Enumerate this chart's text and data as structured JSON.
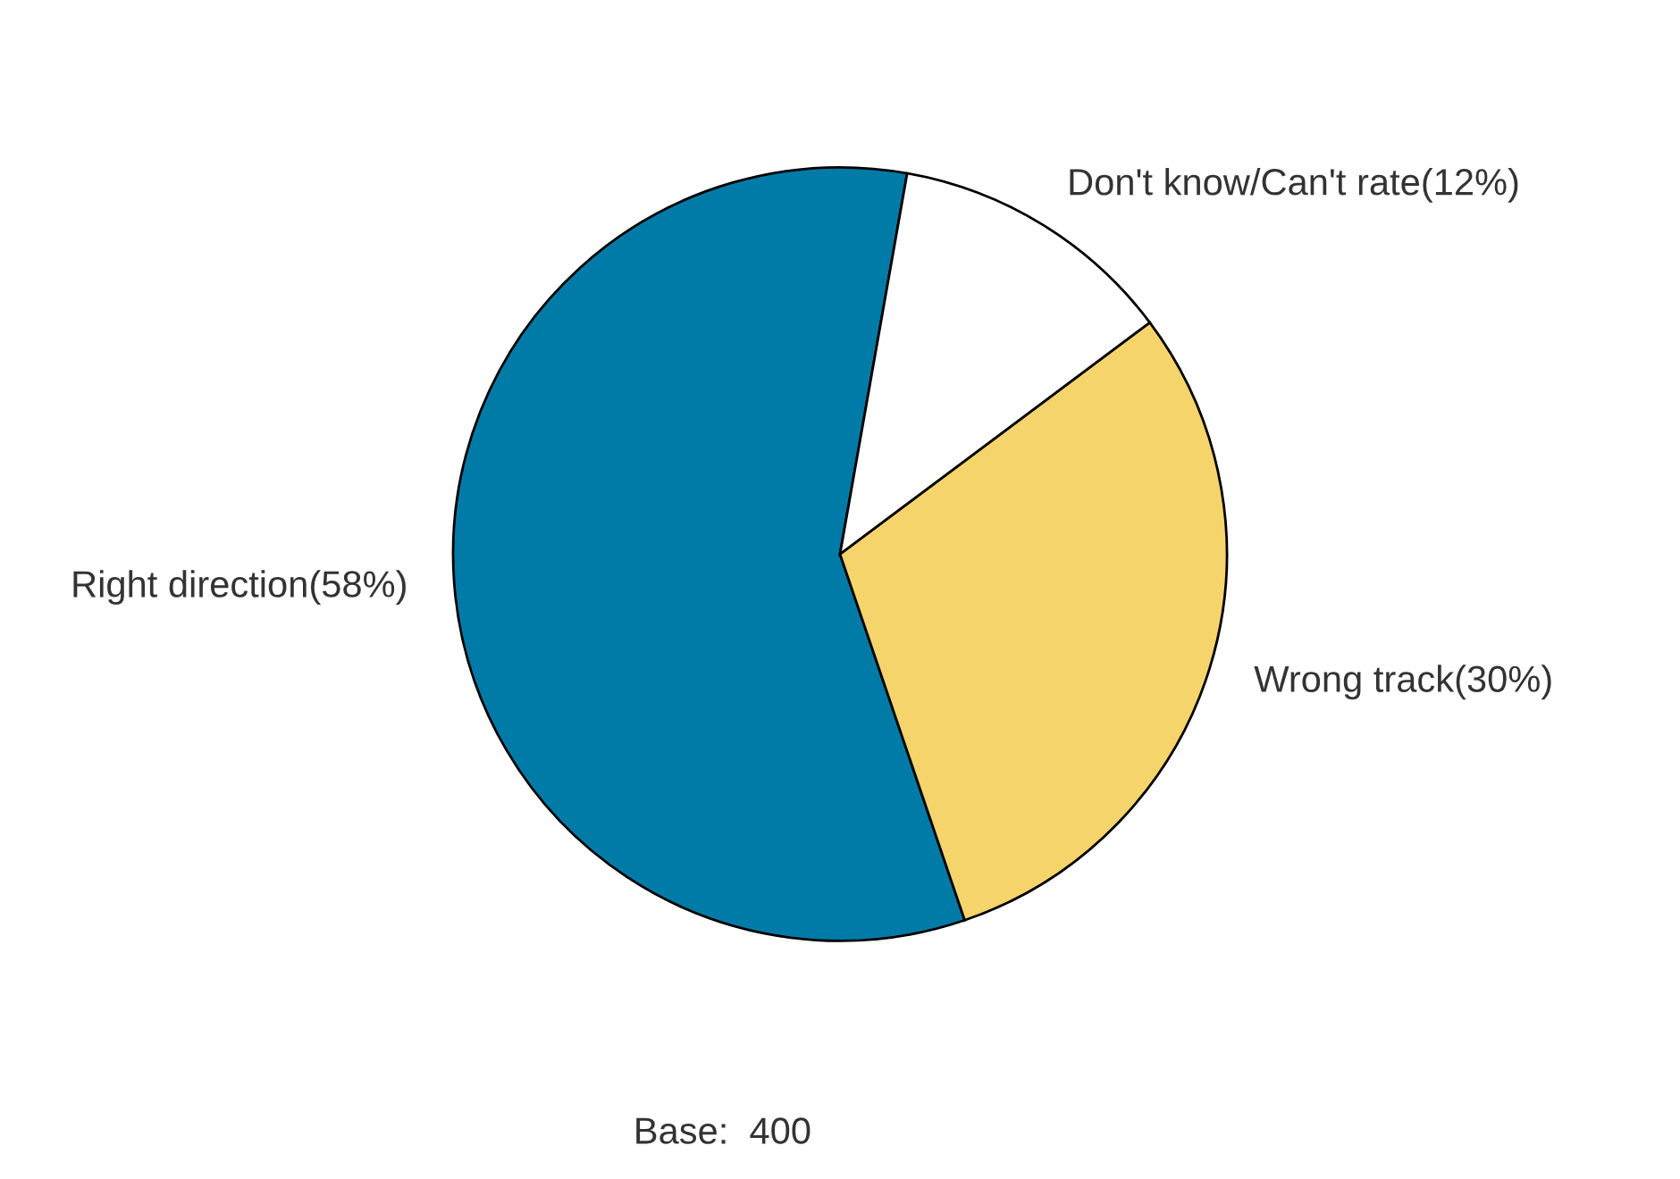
{
  "chart_data": {
    "type": "pie",
    "categories": [
      "Right direction(58%)",
      "Wrong track(30%)",
      "Don't know/Can't rate(12%)"
    ],
    "values": [
      58,
      30,
      12
    ],
    "colors": [
      "#007ba7",
      "#f5d46c",
      "#ffffff"
    ],
    "annotations": [
      "Base:  400"
    ],
    "legend": false
  }
}
